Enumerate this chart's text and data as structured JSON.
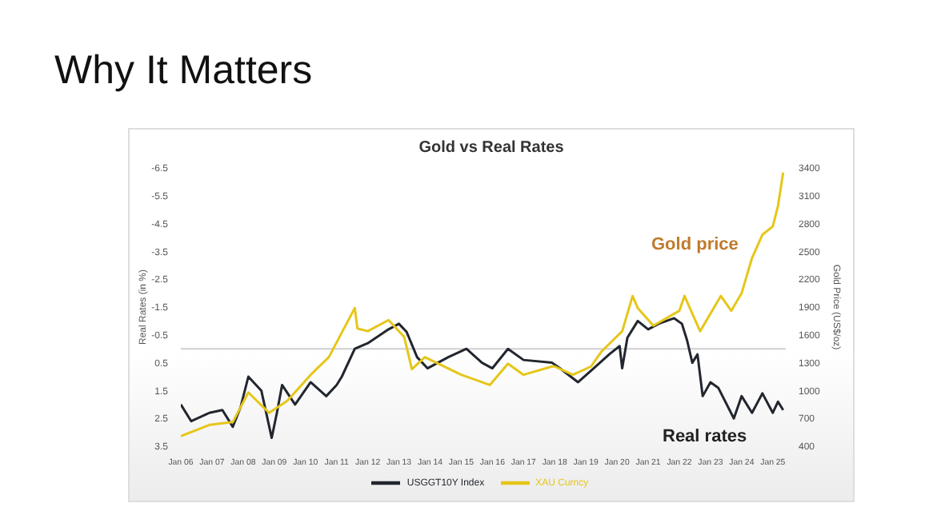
{
  "chart_data": {
    "type": "line",
    "title": "Why It Matters",
    "subtitle": "Gold vs Real Rates",
    "ylabel": "Real Rates (in %)",
    "y2label": "Gold Price (US$/oz)",
    "xlim": [
      "2006-01",
      "2025-06"
    ],
    "xticks": [
      {
        "value": "2006-01",
        "label": "Jan 06"
      },
      {
        "value": "2007-01",
        "label": "Jan 07"
      },
      {
        "value": "2008-01",
        "label": "Jan 08"
      },
      {
        "value": "2009-01",
        "label": "Jan 09"
      },
      {
        "value": "2010-01",
        "label": "Jan 10"
      },
      {
        "value": "2011-01",
        "label": "Jan 11"
      },
      {
        "value": "2012-01",
        "label": "Jan 12"
      },
      {
        "value": "2013-01",
        "label": "Jan 13"
      },
      {
        "value": "2014-01",
        "label": "Jan 14"
      },
      {
        "value": "2015-01",
        "label": "Jan 15"
      },
      {
        "value": "2016-01",
        "label": "Jan 16"
      },
      {
        "value": "2017-01",
        "label": "Jan 17"
      },
      {
        "value": "2018-01",
        "label": "Jan 18"
      },
      {
        "value": "2019-01",
        "label": "Jan 19"
      },
      {
        "value": "2020-01",
        "label": "Jan 20"
      },
      {
        "value": "2021-01",
        "label": "Jan 21"
      },
      {
        "value": "2022-01",
        "label": "Jan 22"
      },
      {
        "value": "2023-01",
        "label": "Jan 23"
      },
      {
        "value": "2024-01",
        "label": "Jan 24"
      },
      {
        "value": "2025-01",
        "label": "Jan 25"
      }
    ],
    "ylim": [
      3.5,
      -6.5
    ],
    "yticks": [
      -6.5,
      -5.5,
      -4.5,
      -3.5,
      -2.5,
      -1.5,
      -0.5,
      0.5,
      1.5,
      2.5,
      3.5
    ],
    "y2lim": [
      400,
      3400
    ],
    "y2ticks": [
      400,
      700,
      1000,
      1300,
      1600,
      1900,
      2200,
      2500,
      2800,
      3100,
      3400
    ],
    "ref_lines": [
      {
        "axis": "y",
        "value": 0,
        "color": "#cfcfcf"
      }
    ],
    "legend": "bottom",
    "marker": "none",
    "line_style": "solid",
    "annotations": [
      "Gold price",
      "Real rates"
    ],
    "series": [
      {
        "name": "USGGT10Y Index",
        "color": "#22262e",
        "x": [
          "2006-01",
          "2006-05",
          "2006-12",
          "2007-05",
          "2007-09",
          "2007-12",
          "2008-03",
          "2008-08",
          "2008-12",
          "2009-02",
          "2009-04",
          "2009-09",
          "2010-03",
          "2010-09",
          "2011-01",
          "2011-03",
          "2011-08",
          "2012-01",
          "2012-09",
          "2013-01",
          "2013-04",
          "2013-08",
          "2013-12",
          "2014-08",
          "2015-03",
          "2015-09",
          "2016-01",
          "2016-07",
          "2017-01",
          "2017-12",
          "2018-03",
          "2018-10",
          "2019-04",
          "2019-10",
          "2020-02",
          "2020-03",
          "2020-05",
          "2020-09",
          "2021-01",
          "2021-05",
          "2021-11",
          "2022-02",
          "2022-04",
          "2022-06",
          "2022-08",
          "2022-10",
          "2023-01",
          "2023-04",
          "2023-10",
          "2024-01",
          "2024-05",
          "2024-09",
          "2025-01",
          "2025-03",
          "2025-05"
        ],
        "values": [
          2.0,
          2.6,
          2.3,
          2.2,
          2.8,
          2.1,
          1.0,
          1.5,
          3.2,
          2.3,
          1.3,
          2.0,
          1.2,
          1.7,
          1.3,
          1.0,
          0.0,
          -0.2,
          -0.7,
          -0.9,
          -0.6,
          0.3,
          0.7,
          0.3,
          0.0,
          0.5,
          0.7,
          0.0,
          0.4,
          0.5,
          0.7,
          1.2,
          0.7,
          0.2,
          -0.1,
          0.7,
          -0.4,
          -1.0,
          -0.7,
          -0.9,
          -1.1,
          -0.9,
          -0.3,
          0.5,
          0.2,
          1.7,
          1.2,
          1.4,
          2.5,
          1.7,
          2.3,
          1.6,
          2.3,
          1.9,
          2.2
        ]
      },
      {
        "name": "XAU Curncy",
        "color": "#e6c619",
        "x": [
          "2006-01",
          "2006-12",
          "2007-09",
          "2008-03",
          "2008-11",
          "2009-06",
          "2010-03",
          "2010-10",
          "2011-08",
          "2011-09",
          "2012-01",
          "2012-09",
          "2013-03",
          "2013-06",
          "2013-11",
          "2015-01",
          "2015-12",
          "2016-07",
          "2017-01",
          "2017-12",
          "2018-01",
          "2018-08",
          "2019-03",
          "2019-07",
          "2020-03",
          "2020-07",
          "2020-09",
          "2021-03",
          "2022-01",
          "2022-03",
          "2022-09",
          "2023-05",
          "2023-09",
          "2024-01",
          "2024-05",
          "2024-09",
          "2025-01",
          "2025-03",
          "2025-05"
        ],
        "values": [
          510,
          630,
          660,
          980,
          760,
          890,
          1170,
          1360,
          1890,
          1670,
          1640,
          1760,
          1580,
          1230,
          1360,
          1170,
          1060,
          1290,
          1170,
          1260,
          1260,
          1170,
          1260,
          1420,
          1640,
          2020,
          1890,
          1700,
          1860,
          2020,
          1640,
          2020,
          1860,
          2050,
          2430,
          2680,
          2770,
          2990,
          3350
        ],
        "axis": "y2"
      }
    ]
  }
}
